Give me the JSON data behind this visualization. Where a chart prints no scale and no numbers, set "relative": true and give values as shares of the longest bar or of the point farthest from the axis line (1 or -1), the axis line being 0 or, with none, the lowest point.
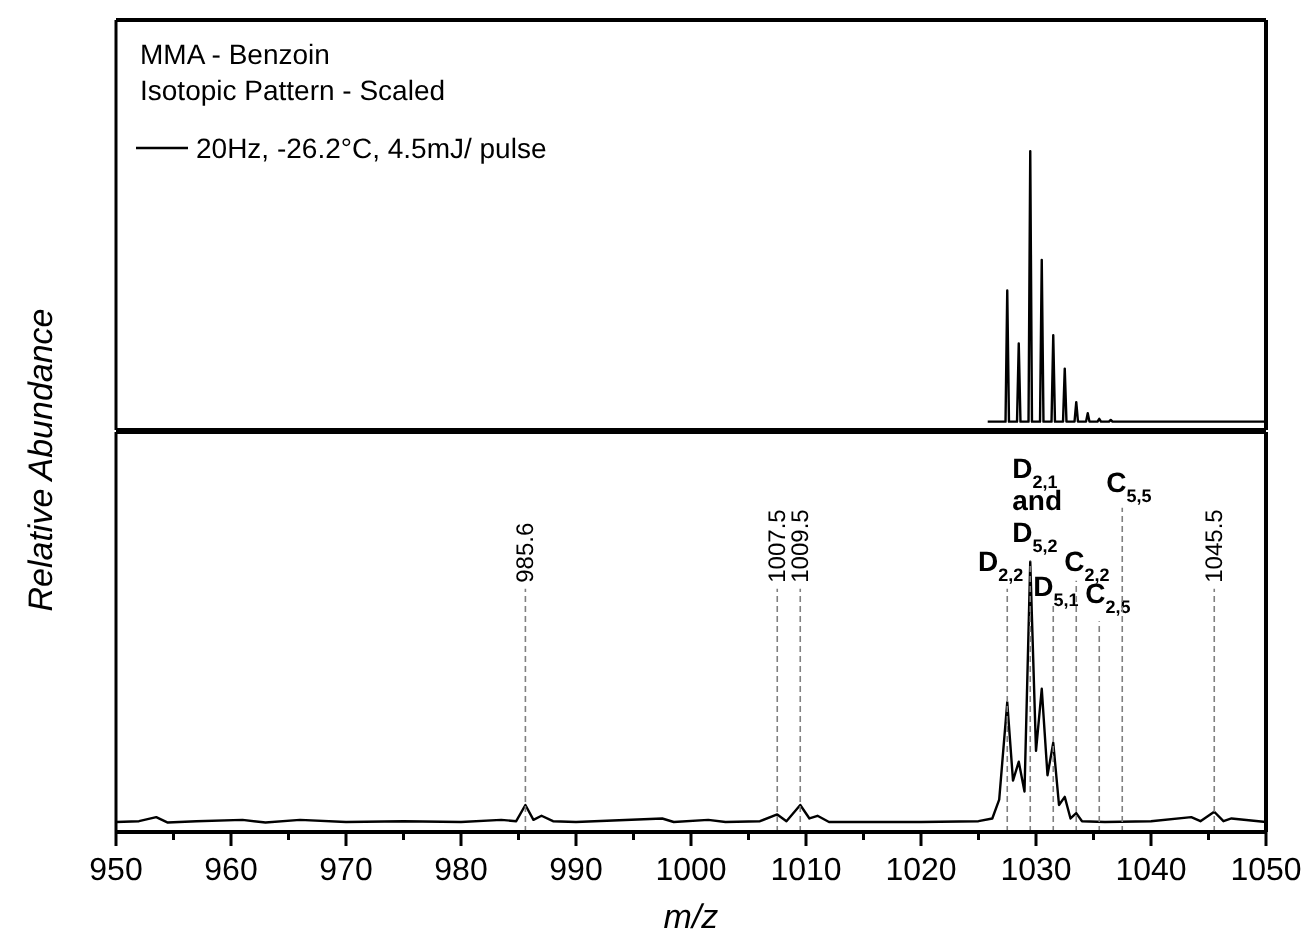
{
  "chart_data": [
    {
      "type": "line",
      "title": "MMA - Benzoin",
      "subtitle": "Isotopic Pattern - Scaled",
      "ylabel": "Relative Abundance",
      "relative": true,
      "xlim": [
        950,
        1050
      ],
      "tick_labels": false,
      "legend": "top left",
      "marker": "none",
      "line_style": "solid",
      "x": [
        1025.8,
        1027.35,
        1027.5,
        1027.65,
        1028.35,
        1028.5,
        1028.65,
        1029.35,
        1029.5,
        1029.65,
        1030.35,
        1030.5,
        1030.65,
        1031.35,
        1031.5,
        1031.65,
        1032.35,
        1032.5,
        1032.65,
        1033.35,
        1033.5,
        1033.65,
        1034.35,
        1034.5,
        1034.65,
        1035.35,
        1035.5,
        1035.65,
        1036.35,
        1036.5,
        1036.65,
        1050
      ],
      "series": [
        {
          "name": "20Hz, -26.2°C, 4.5mJ/ pulse",
          "color": "#000000",
          "values": [
            0.03,
            0.03,
            0.5,
            0.03,
            0.03,
            0.31,
            0.03,
            0.03,
            1,
            0.03,
            0.03,
            0.61,
            0.03,
            0.03,
            0.34,
            0.03,
            0.03,
            0.22,
            0.03,
            0.03,
            0.1,
            0.03,
            0.03,
            0.06,
            0.03,
            0.03,
            0.04,
            0.03,
            0.03,
            0.036,
            0.03,
            0.03
          ]
        }
      ]
    },
    {
      "type": "line",
      "xlabel": "m/z",
      "relative": true,
      "xlim": [
        950,
        1050
      ],
      "tick_labels": "x",
      "legend": false,
      "marker": "none",
      "line_style": "solid",
      "xticks": [
        950,
        {
          "value": 955,
          "label": null
        },
        960,
        {
          "value": 965,
          "label": null
        },
        970,
        {
          "value": 975,
          "label": null
        },
        980,
        {
          "value": 985,
          "label": null
        },
        990,
        {
          "value": 995,
          "label": null
        },
        1000,
        {
          "value": 1005,
          "label": null
        },
        1010,
        {
          "value": 1015,
          "label": null
        },
        1020,
        {
          "value": 1025,
          "label": null
        },
        1030,
        {
          "value": 1035,
          "label": null
        },
        1040,
        {
          "value": 1045,
          "label": null
        },
        1050
      ],
      "x": [
        950,
        952,
        953.5,
        954.5,
        957,
        961,
        963,
        966,
        970,
        975,
        980,
        983.5,
        984.8,
        985.6,
        986.3,
        987,
        988,
        990,
        997.5,
        998.5,
        1001.5,
        1003,
        1006,
        1007.5,
        1008.3,
        1009.5,
        1010.3,
        1011,
        1012,
        1020,
        1025,
        1026.2,
        1026.8,
        1027.5,
        1028,
        1028.5,
        1029,
        1029.5,
        1030,
        1030.5,
        1031,
        1031.5,
        1032,
        1032.5,
        1033,
        1033.5,
        1034,
        1036,
        1040,
        1043.5,
        1044.3,
        1045.5,
        1046.3,
        1047,
        1050
      ],
      "series": [
        {
          "color": "#000000",
          "values": [
            0.037,
            0.04,
            0.055,
            0.035,
            0.04,
            0.045,
            0.035,
            0.045,
            0.037,
            0.04,
            0.037,
            0.045,
            0.04,
            0.1,
            0.045,
            0.06,
            0.04,
            0.037,
            0.05,
            0.037,
            0.045,
            0.037,
            0.04,
            0.065,
            0.04,
            0.1,
            0.05,
            0.06,
            0.037,
            0.037,
            0.04,
            0.05,
            0.12,
            0.48,
            0.19,
            0.26,
            0.15,
            1,
            0.3,
            0.53,
            0.21,
            0.33,
            0.1,
            0.13,
            0.05,
            0.07,
            0.04,
            0.037,
            0.04,
            0.055,
            0.04,
            0.075,
            0.04,
            0.05,
            0.037
          ]
        }
      ],
      "ref_lines": [
        {
          "axis": "x",
          "value": 985.6,
          "label": "985.6",
          "color": "#808080",
          "line_style": "dashed"
        },
        {
          "axis": "x",
          "value": 1007.5,
          "label": "1007.5",
          "color": "#808080",
          "line_style": "dashed"
        },
        {
          "axis": "x",
          "value": 1009.5,
          "label": "1009.5",
          "color": "#808080",
          "line_style": "dashed"
        },
        {
          "axis": "x",
          "value": 1027.5,
          "label": "D$_{2,2}$",
          "color": "#808080",
          "line_style": "dashed"
        },
        {
          "axis": "x",
          "value": 1029.5,
          "label": "D$_{2,1}$ and D$_{5,2}$",
          "color": "#808080",
          "line_style": "dashed"
        },
        {
          "axis": "x",
          "value": 1031.5,
          "label": "D$_{5,1}$",
          "color": "#808080",
          "line_style": "dashed"
        },
        {
          "axis": "x",
          "value": 1033.5,
          "label": "C$_{2,2}$",
          "color": "#808080",
          "line_style": "dashed"
        },
        {
          "axis": "x",
          "value": 1035.5,
          "label": "C$_{2,5}$",
          "color": "#808080",
          "line_style": "dashed"
        },
        {
          "axis": "x",
          "value": 1037.5,
          "label": "C$_{5,5}$",
          "color": "#808080",
          "line_style": "dashed"
        },
        {
          "axis": "x",
          "value": 1045.5,
          "label": "1045.5",
          "color": "#808080",
          "line_style": "dashed"
        }
      ]
    }
  ]
}
